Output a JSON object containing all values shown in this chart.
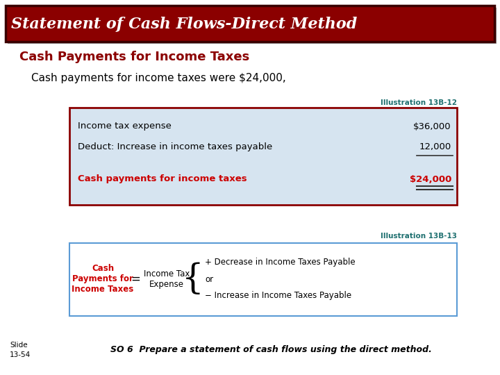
{
  "title": "Statement of Cash Flows-Direct Method",
  "title_bg": "#8B0000",
  "title_color": "#FFFFFF",
  "section_header": "Cash Payments for Income Taxes",
  "section_header_color": "#8B0000",
  "subtext": "Cash payments for income taxes were $24,000,",
  "illus1_label": "Illustration 13B-12",
  "illus1_color": "#1F7070",
  "table_rows": [
    {
      "label": "Income tax expense",
      "value": "$36,000",
      "bold": false,
      "color": "#000000"
    },
    {
      "label": "Deduct: Increase in income taxes payable",
      "value": "12,000",
      "bold": false,
      "color": "#000000"
    },
    {
      "label": "Cash payments for income taxes",
      "value": "$24,000",
      "bold": true,
      "color": "#CC0000"
    }
  ],
  "table_bg": "#D6E4F0",
  "table_border": "#8B0000",
  "illus2_label": "Illustration 13B-13",
  "illus2_color": "#1F7070",
  "formula_left_label": "Cash\nPayments for\nIncome Taxes",
  "formula_left_color": "#CC0000",
  "formula_equals": "=",
  "formula_mid_label": "Income Tax\nExpense",
  "formula_right_lines": [
    "+ Decrease in Income Taxes Payable",
    "or",
    "− Increase in Income Taxes Payable"
  ],
  "formula_bg": "#FFFFFF",
  "formula_border": "#5B9BD5",
  "slide_label": "Slide\n13-54",
  "footer_text": "SO 6  Prepare a statement of cash flows using the direct method.",
  "footer_color": "#000000",
  "bg_color": "#FFFFFF"
}
